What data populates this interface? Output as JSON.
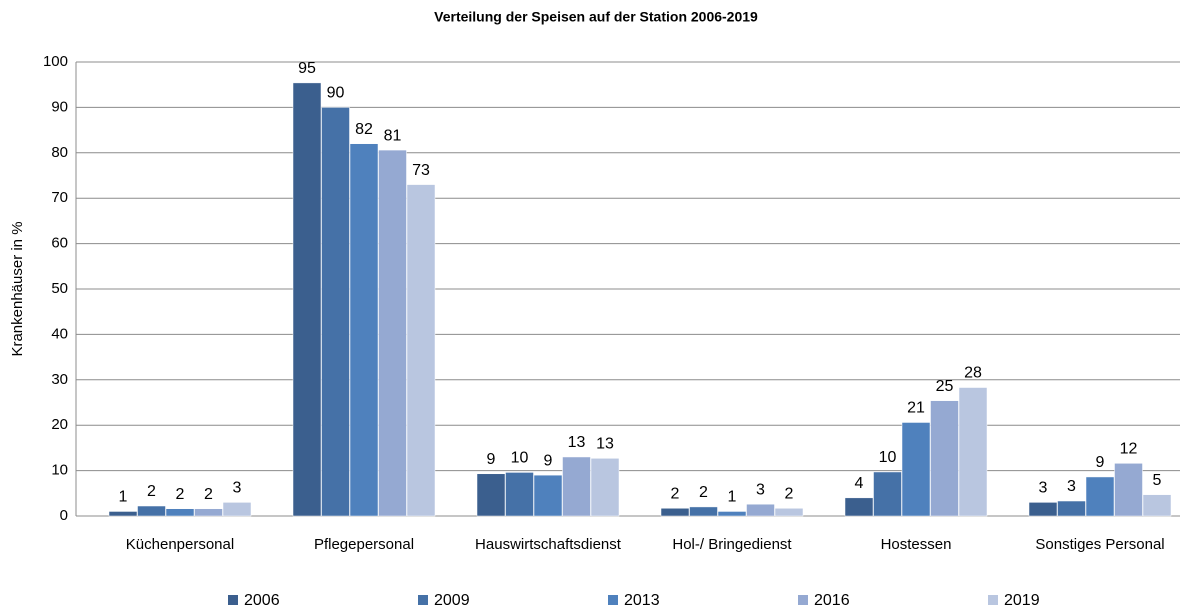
{
  "chart_data": {
    "type": "bar",
    "title": "Verteilung der Speisen auf der Station 2006-2019",
    "ylabel": "Krankenhäuser in %",
    "categories": [
      "Küchenpersonal",
      "Pflegepersonal",
      "Hauswirtschaftsdienst",
      "Hol-/ Bringedienst",
      "Hostessen",
      "Sonstiges Personal"
    ],
    "series": [
      {
        "name": "2006",
        "color": "#3b5f8e",
        "values": [
          1,
          95.4,
          9.3,
          1.7,
          4,
          3
        ],
        "value_labels": [
          "1",
          "95",
          "9",
          "2",
          "4",
          "3"
        ]
      },
      {
        "name": "2009",
        "color": "#4571a7",
        "values": [
          2.2,
          90,
          9.6,
          2,
          9.7,
          3.3
        ],
        "value_labels": [
          "2",
          "90",
          "10",
          "2",
          "10",
          "3"
        ]
      },
      {
        "name": "2013",
        "color": "#4f81bd",
        "values": [
          1.6,
          82,
          9,
          1,
          20.6,
          8.6
        ],
        "value_labels": [
          "2",
          "82",
          "9",
          "1",
          "21",
          "9"
        ]
      },
      {
        "name": "2016",
        "color": "#95a9d2",
        "values": [
          1.6,
          80.6,
          13,
          2.6,
          25.4,
          11.6
        ],
        "value_labels": [
          "2",
          "81",
          "13",
          "3",
          "25",
          "12"
        ]
      },
      {
        "name": "2019",
        "color": "#b9c6e0",
        "values": [
          3,
          73,
          12.7,
          1.7,
          28.3,
          4.7
        ],
        "value_labels": [
          "3",
          "73",
          "13",
          "2",
          "28",
          "5"
        ]
      }
    ],
    "ylim": [
      0,
      100
    ],
    "yticks": [
      0,
      10,
      20,
      30,
      40,
      50,
      60,
      70,
      80,
      90,
      100
    ],
    "grid": true,
    "legend": "bottom"
  }
}
